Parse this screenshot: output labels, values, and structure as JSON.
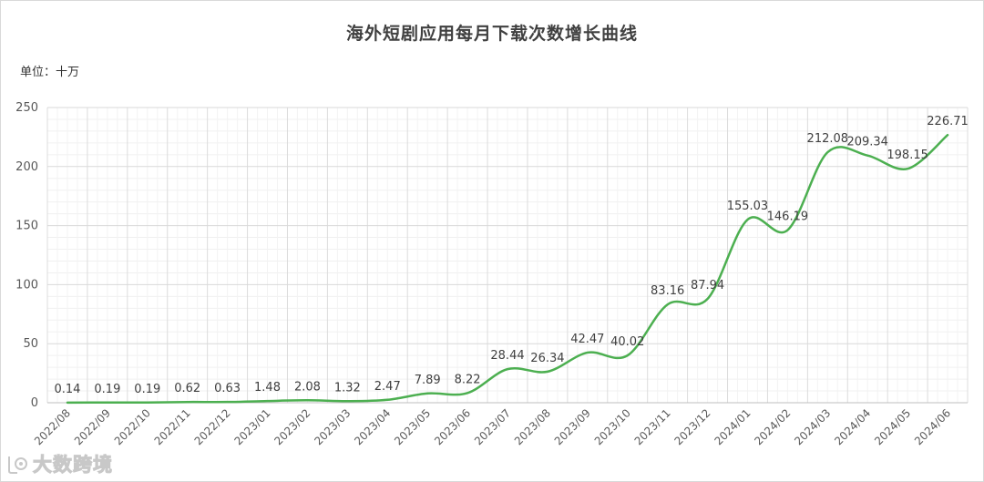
{
  "chart_data": {
    "type": "line",
    "title": "海外短剧应用每月下载次数增长曲线",
    "unit_label": "单位：十万",
    "categories": [
      "2022/08",
      "2022/09",
      "2022/10",
      "2022/11",
      "2022/12",
      "2023/01",
      "2023/02",
      "2023/03",
      "2023/04",
      "2023/05",
      "2023/06",
      "2023/07",
      "2023/08",
      "2023/09",
      "2023/10",
      "2023/11",
      "2023/12",
      "2024/01",
      "2024/02",
      "2024/03",
      "2024/04",
      "2024/05",
      "2024/06"
    ],
    "series": [
      {
        "values": [
          0.14,
          0.19,
          0.19,
          0.62,
          0.63,
          1.48,
          2.08,
          1.32,
          2.47,
          7.89,
          8.22,
          28.44,
          26.34,
          42.47,
          40.02,
          83.16,
          87.94,
          155.03,
          146.19,
          212.08,
          209.34,
          198.15,
          226.71
        ],
        "labels": [
          "0.14",
          "0.19",
          "0.19",
          "0.62",
          "0.63",
          "1.48",
          "2.08",
          "1.32",
          "2.47",
          "7.89",
          "8.22",
          "28.44",
          "26.34",
          "42.47",
          "40.02",
          "83.16",
          "87.94",
          "155.03",
          "146.19",
          "212.08",
          "209.34",
          "198.15",
          "226.71"
        ]
      }
    ],
    "ylim": [
      0,
      250
    ],
    "yticks": [
      "0",
      "50",
      "100",
      "150",
      "200",
      "250"
    ],
    "grid": true,
    "smooth": true,
    "line_color": "#4caf50"
  },
  "watermark": {
    "text": "大数跨境"
  }
}
